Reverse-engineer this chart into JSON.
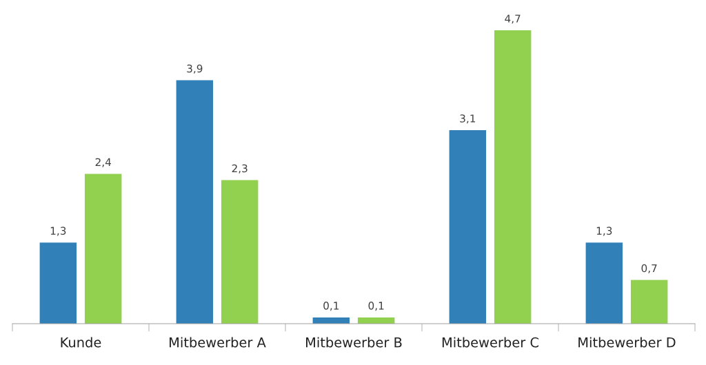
{
  "chart_data": {
    "type": "bar",
    "categories": [
      "Kunde",
      "Mitbewerber A",
      "Mitbewerber B",
      "Mitbewerber C",
      "Mitbewerber D"
    ],
    "series": [
      {
        "color": "#3180b8",
        "values": [
          1.3,
          3.9,
          0.1,
          3.1,
          1.3
        ],
        "value_labels": [
          "1,3",
          "3,9",
          "0,1",
          "3,1",
          "1,3"
        ]
      },
      {
        "color": "#92d050",
        "values": [
          2.4,
          2.3,
          0.1,
          4.7,
          0.7
        ],
        "value_labels": [
          "2,4",
          "2,3",
          "0,1",
          "4,7",
          "0,7"
        ]
      }
    ],
    "grid": false,
    "legend": false
  }
}
